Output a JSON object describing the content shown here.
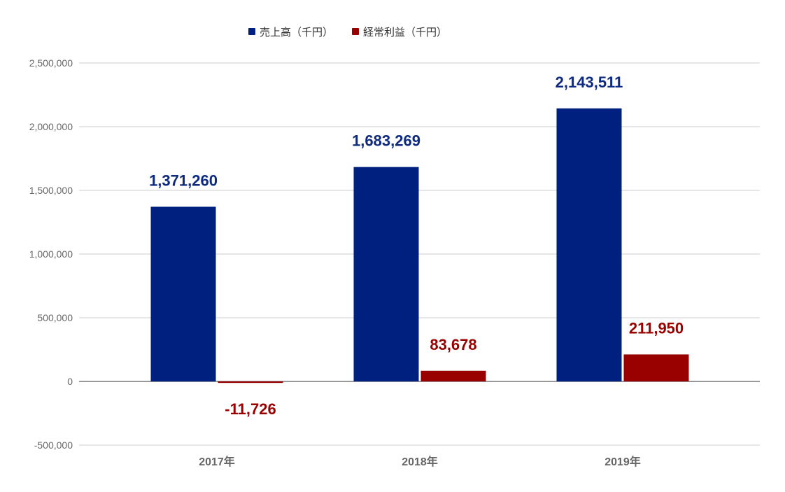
{
  "chart_data": {
    "type": "bar",
    "categories": [
      "2017年",
      "2018年",
      "2019年"
    ],
    "series": [
      {
        "name": "売上高（千円）",
        "color": "#002080",
        "values": [
          1371260,
          1683269,
          2143511
        ]
      },
      {
        "name": "経常利益（千円）",
        "color": "#990000",
        "values": [
          -11726,
          83678,
          211950
        ]
      }
    ],
    "data_labels": [
      [
        "1,371,260",
        "1,683,269",
        "2,143,511"
      ],
      [
        "-11,726",
        "83,678",
        "211,950"
      ]
    ],
    "ylim": [
      -500000,
      2500000
    ],
    "yticks": [
      -500000,
      0,
      500000,
      1000000,
      1500000,
      2000000,
      2500000
    ],
    "ytick_labels": [
      "-500,000",
      "0",
      "500,000",
      "1,000,000",
      "1,500,000",
      "2,000,000",
      "2,500,000"
    ],
    "grid": true,
    "legend_position": "top-center",
    "title": "",
    "xlabel": "",
    "ylabel": ""
  }
}
